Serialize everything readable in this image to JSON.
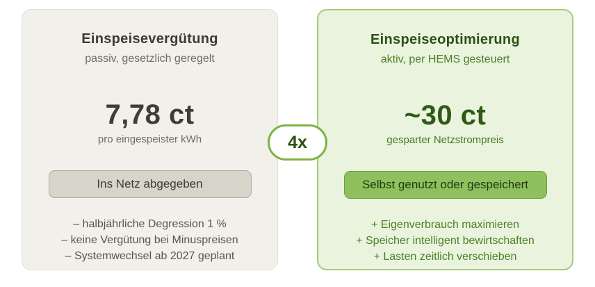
{
  "left_card": {
    "title": "Einspeisevergütung",
    "subtitle": "passiv, gesetzlich geregelt",
    "price": "7,78 ct",
    "price_label": "pro eingespeister kWh",
    "tag": "Ins Netz abgegeben",
    "points": [
      "– halbjährliche Degression 1 %",
      "– keine Vergütung bei Minuspreisen",
      "– Systemwechsel ab 2027 geplant"
    ]
  },
  "badge": {
    "label": "4x"
  },
  "right_card": {
    "title": "Einspeiseoptimierung",
    "subtitle": "aktiv, per HEMS gesteuert",
    "price": "~30 ct",
    "price_label": "gesparter Netzstrompreis",
    "tag": "Selbst genutzt oder gespeichert",
    "points": [
      "+ Eigenverbrauch maximieren",
      "+ Speicher intelligent bewirtschaften",
      "+ Lasten zeitlich verschieben"
    ]
  },
  "colors": {
    "left_card_bg": "#f1f0ea",
    "left_card_border": "#e2e0d6",
    "right_card_bg": "#eaf3de",
    "right_card_border": "#a6ca7c",
    "gray_tag_bg": "#d7d4ca",
    "green_tag_bg": "#8fc05e",
    "badge_border": "#7cb340",
    "dark_green_text": "#2b5114",
    "mid_green_text": "#4a8124",
    "dark_gray_text": "#3d3b37"
  }
}
